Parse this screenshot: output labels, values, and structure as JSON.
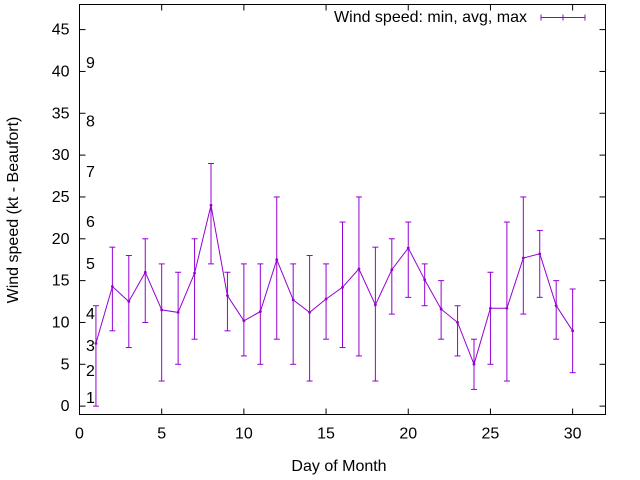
{
  "chart_data": {
    "type": "line",
    "title": "",
    "xlabel": "Day of Month",
    "ylabel": "Wind speed (kt - Beaufort)",
    "xlim": [
      0,
      32
    ],
    "ylim": [
      -1,
      48
    ],
    "x_ticks": [
      0,
      5,
      10,
      15,
      20,
      25,
      30
    ],
    "y_ticks": [
      0,
      5,
      10,
      15,
      20,
      25,
      30,
      35,
      40,
      45
    ],
    "beaufort_labels": [
      {
        "label": "1",
        "y": 1
      },
      {
        "label": "2",
        "y": 4.2
      },
      {
        "label": "3",
        "y": 7.2
      },
      {
        "label": "4",
        "y": 11
      },
      {
        "label": "5",
        "y": 17
      },
      {
        "label": "6",
        "y": 22
      },
      {
        "label": "7",
        "y": 28
      },
      {
        "label": "8",
        "y": 34
      },
      {
        "label": "9",
        "y": 41
      }
    ],
    "grid": false,
    "legend_position": "top-right",
    "series": [
      {
        "name": "Wind speed: min, avg, max",
        "color": "#9400d3",
        "x": [
          1,
          2,
          3,
          4,
          5,
          6,
          7,
          8,
          9,
          10,
          11,
          12,
          13,
          14,
          15,
          16,
          17,
          18,
          19,
          20,
          21,
          22,
          23,
          24,
          25,
          26,
          27,
          28,
          29,
          30
        ],
        "avg": [
          7.5,
          14.3,
          12.5,
          16,
          11.5,
          11.2,
          15.9,
          24,
          13.2,
          10.2,
          11.3,
          17.5,
          12.7,
          11.2,
          12.8,
          14.2,
          16.4,
          12.1,
          16.3,
          18.9,
          15.1,
          11.6,
          10,
          5,
          11.7,
          11.7,
          17.7,
          18.2,
          12,
          9
        ],
        "min": [
          0,
          9,
          7,
          10,
          3,
          5,
          8,
          17,
          9,
          6,
          5,
          8,
          5,
          3,
          8,
          7,
          6,
          3,
          11,
          13,
          12,
          8,
          6,
          2,
          5,
          3,
          11,
          13,
          8,
          4
        ],
        "max": [
          12,
          19,
          18,
          20,
          17,
          16,
          20,
          29,
          16,
          17,
          17,
          25,
          17,
          18,
          17,
          22,
          25,
          19,
          20,
          22,
          17,
          15,
          12,
          8,
          16,
          22,
          25,
          21,
          15,
          14
        ]
      }
    ]
  }
}
